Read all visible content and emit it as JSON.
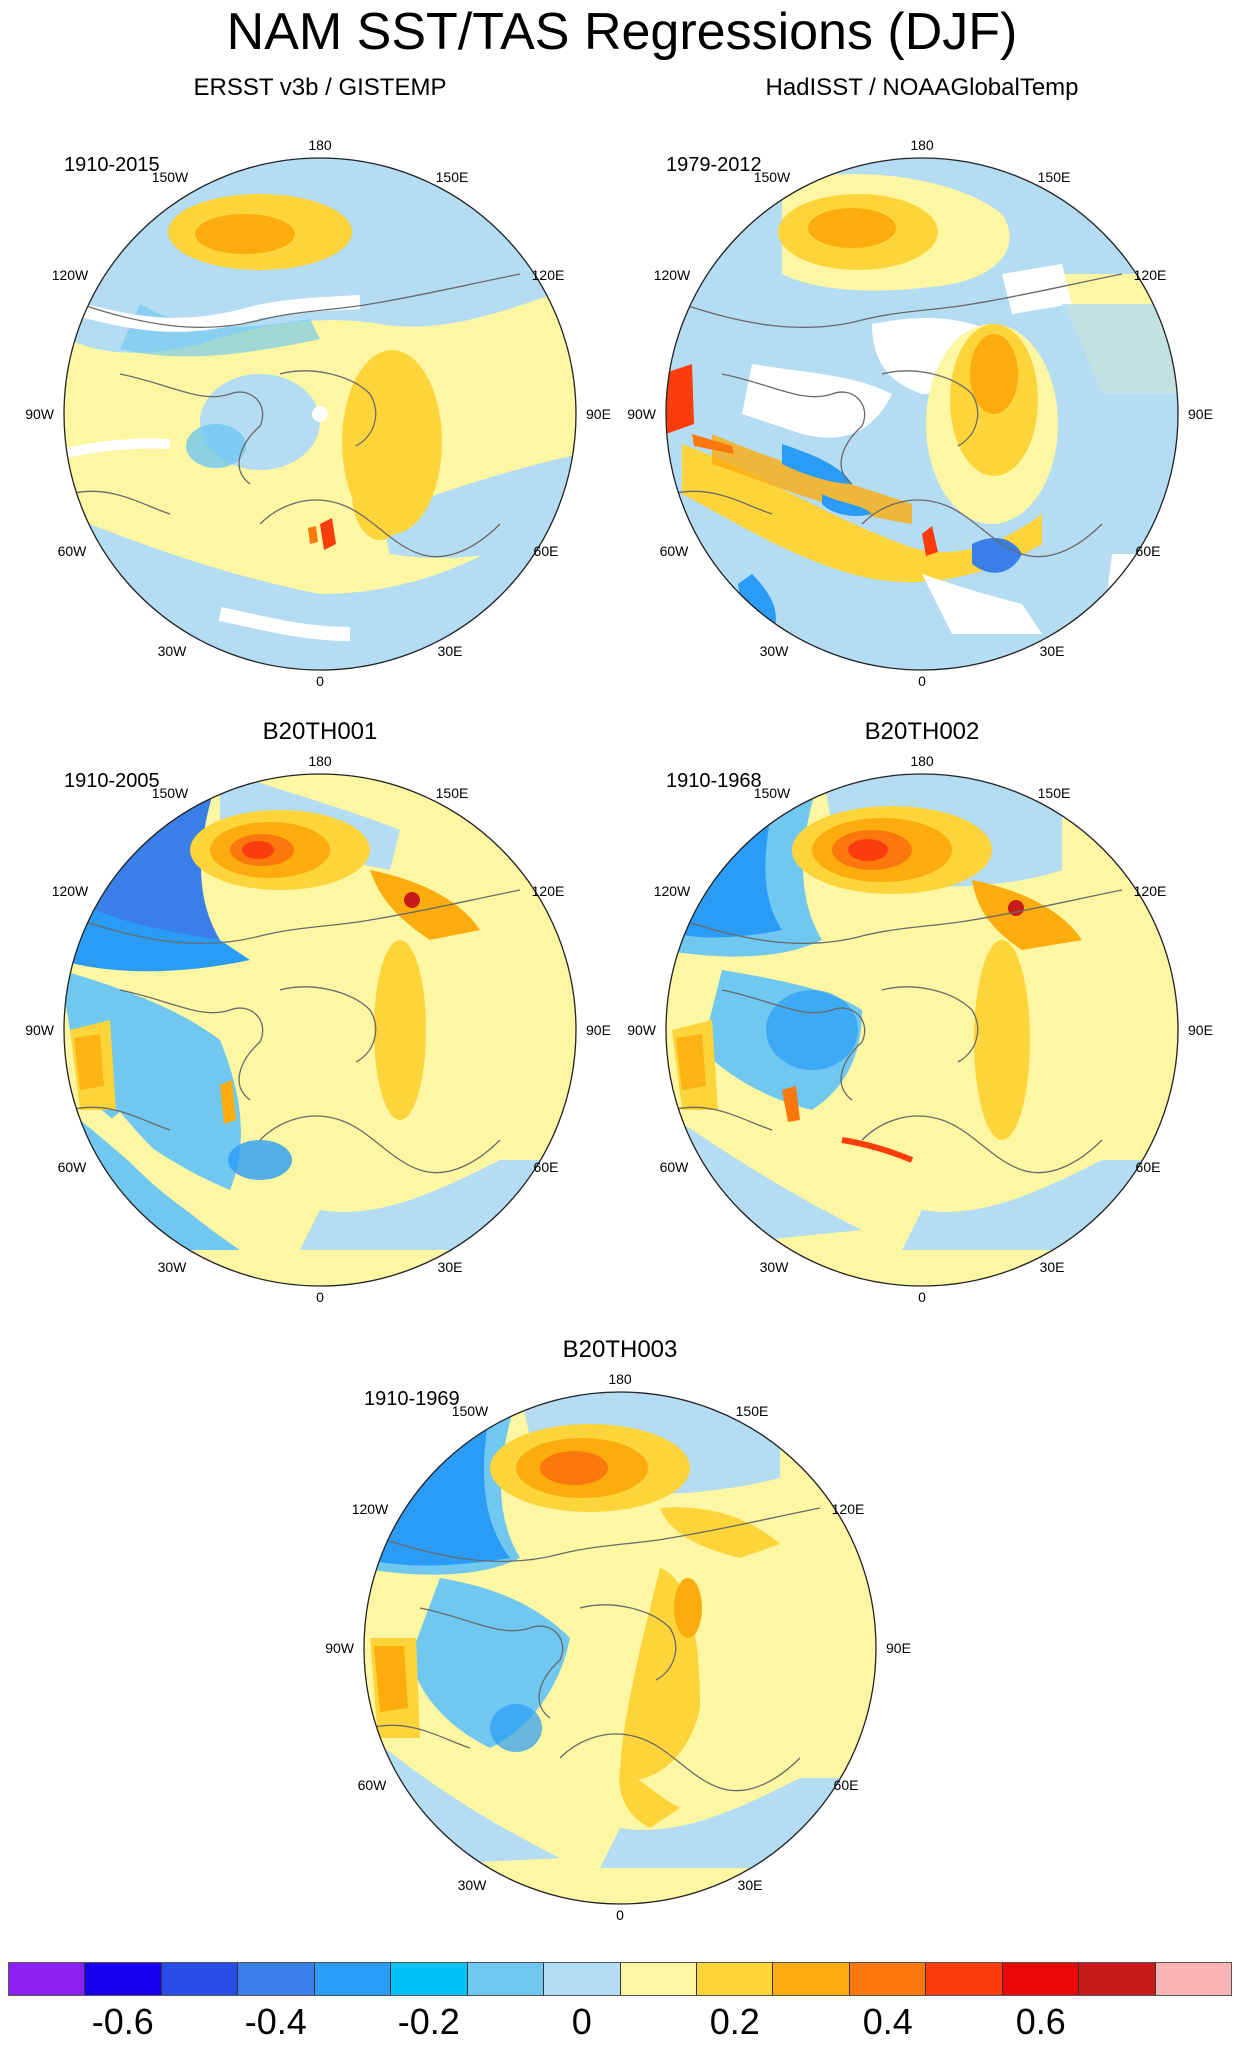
{
  "title": "NAM SST/TAS Regressions (DJF)",
  "panels": [
    {
      "title": "ERSST v3b / GISTEMP",
      "period": "1910-2015"
    },
    {
      "title": "HadISST / NOAAGlobalTemp",
      "period": "1979-2012"
    },
    {
      "title": "B20TH001",
      "period": "1910-2005"
    },
    {
      "title": "B20TH002",
      "period": "1910-1968"
    },
    {
      "title": "B20TH003",
      "period": "1910-1969"
    }
  ],
  "longitude_labels": {
    "top": "180",
    "ne": "150E",
    "ene": "120E",
    "e": "90E",
    "ese": "60E",
    "se": "30E",
    "bottom": "0",
    "sw": "30W",
    "wsw": "60W",
    "w": "90W",
    "wnw": "120W",
    "nw": "150W"
  },
  "colorbar": {
    "colors": [
      "#8b20f0",
      "#1800f0",
      "#2a4de8",
      "#3a7ee8",
      "#2a9cf6",
      "#00c4f8",
      "#70c8f0",
      "#b4dcf2",
      "#fdf6a2",
      "#fdd43a",
      "#fcac0c",
      "#fb780c",
      "#fb3c0c",
      "#e80808",
      "#c81c1c",
      "#fbb4b4"
    ],
    "labels": [
      "-0.6",
      "-0.4",
      "-0.2",
      "0",
      "0.2",
      "0.4",
      "0.6"
    ],
    "label_boundaries": [
      1,
      3,
      5,
      7,
      9,
      11,
      13
    ]
  },
  "palette": {
    "coast": "#6a6a6a",
    "missing": "#ffffff",
    "outline": "#222222"
  }
}
